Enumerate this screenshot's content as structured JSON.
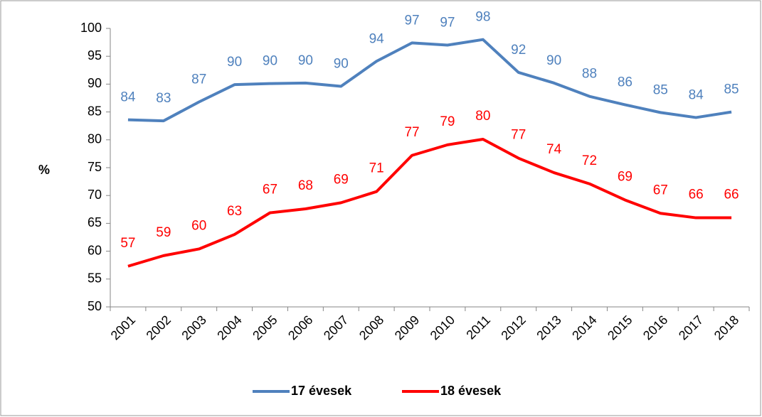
{
  "chart_data": {
    "type": "line",
    "y_label": "%",
    "categories": [
      "2001",
      "2002",
      "2003",
      "2004",
      "2005",
      "2006",
      "2007",
      "2008",
      "2009",
      "2010",
      "2011",
      "2012",
      "2013",
      "2014",
      "2015",
      "2016",
      "2017",
      "2018"
    ],
    "series": [
      {
        "name": "17 évesek",
        "color": "#4f81bd",
        "values": [
          83.6,
          83.4,
          86.8,
          89.9,
          90.1,
          90.2,
          89.6,
          94.1,
          97.4,
          97.0,
          98.0,
          92.1,
          90.2,
          87.8,
          86.3,
          84.9,
          84.0,
          85.0
        ],
        "value_labels": [
          "84",
          "83",
          "87",
          "90",
          "90",
          "90",
          "90",
          "94",
          "97",
          "97",
          "98",
          "92",
          "90",
          "88",
          "86",
          "85",
          "84",
          "85"
        ]
      },
      {
        "name": "18 évesek",
        "color": "#ff0000",
        "values": [
          57.3,
          59.2,
          60.4,
          63.0,
          66.9,
          67.6,
          68.7,
          70.7,
          77.2,
          79.1,
          80.1,
          76.7,
          74.1,
          72.1,
          69.2,
          66.8,
          66.0,
          66.0
        ],
        "value_labels": [
          "57",
          "59",
          "60",
          "63",
          "67",
          "68",
          "69",
          "71",
          "77",
          "79",
          "80",
          "77",
          "74",
          "72",
          "69",
          "67",
          "66",
          "66"
        ]
      }
    ],
    "ylim": [
      50,
      100
    ],
    "yticks": [
      50,
      55,
      60,
      65,
      70,
      75,
      80,
      85,
      90,
      95,
      100
    ],
    "legend": "bottom"
  }
}
